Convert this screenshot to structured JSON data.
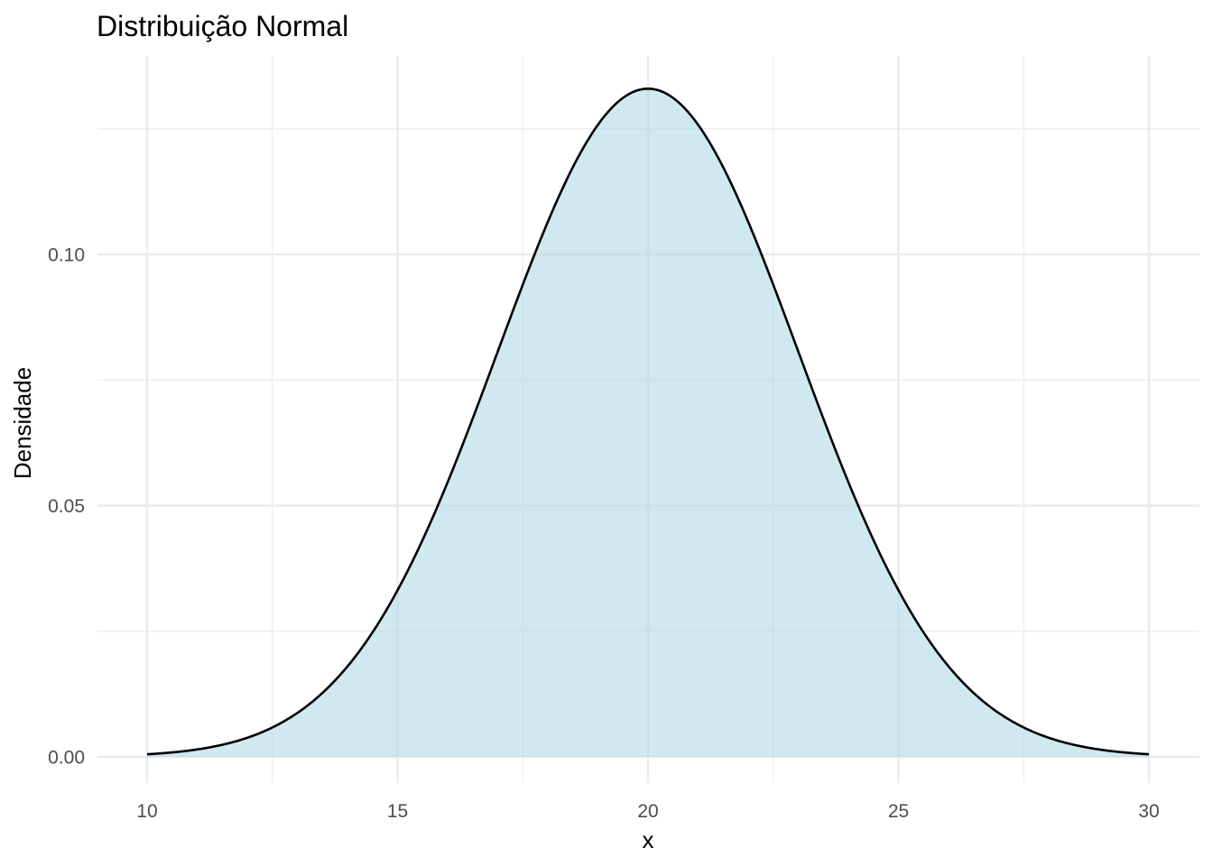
{
  "chart_data": {
    "type": "area",
    "title": "Distribuição Normal",
    "xlabel": "x",
    "ylabel": "Densidade",
    "distribution": {
      "mean": 20,
      "sd": 3
    },
    "xlim": [
      10,
      30
    ],
    "ylim": [
      0,
      0.133
    ],
    "x_ticks": [
      10,
      15,
      20,
      25,
      30
    ],
    "x_tick_labels": [
      "10",
      "15",
      "20",
      "25",
      "30"
    ],
    "y_ticks": [
      0,
      0.05,
      0.1
    ],
    "y_tick_labels": [
      "0.00",
      "0.05",
      "0.10"
    ],
    "series": [
      {
        "x": [
          10,
          11,
          12,
          13,
          14,
          15,
          16,
          17,
          18,
          19,
          20,
          21,
          22,
          23,
          24,
          25,
          26,
          27,
          28,
          29,
          30
        ],
        "y": [
          0.0005,
          0.0015,
          0.0038,
          0.0087,
          0.018,
          0.0332,
          0.0547,
          0.0807,
          0.1065,
          0.1258,
          0.133,
          0.1258,
          0.1065,
          0.0807,
          0.0547,
          0.0332,
          0.018,
          0.0087,
          0.0038,
          0.0015,
          0.0005
        ]
      }
    ],
    "fill_color": "#add8e6",
    "fill_opacity": 0.57,
    "line_color": "#000000",
    "grid": true,
    "background": "#ffffff"
  }
}
